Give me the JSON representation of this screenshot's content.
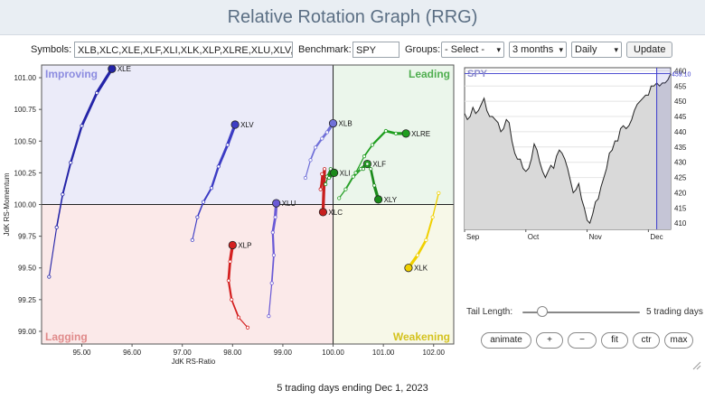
{
  "title": "Relative Rotation Graph (RRG)",
  "controls": {
    "symbols_label": "Symbols:",
    "symbols_value": "XLB,XLC,XLE,XLF,XLI,XLK,XLP,XLRE,XLU,XLV,XLY",
    "benchmark_label": "Benchmark:",
    "benchmark_value": "SPY",
    "groups_label": "Groups:",
    "groups_value": "- Select -",
    "period_value": "3 months",
    "frequency_value": "Daily",
    "update_label": "Update"
  },
  "rrg": {
    "quadrants": {
      "improving": "Improving",
      "leading": "Leading",
      "lagging": "Lagging",
      "weakening": "Weakening"
    },
    "colors": {
      "improving": "#ebebf9",
      "leading": "#ebf6eb",
      "lagging": "#fbe9e9",
      "weakening": "#f7f8e8",
      "improving_text": "#8c8ce0",
      "leading_text": "#4fae4f",
      "lagging_text": "#e08a8a",
      "weakening_text": "#d4c21e"
    },
    "x_axis_label": "JdK RS-Ratio",
    "y_axis_label": "JdK RS-Momentum",
    "x_ticks": [
      "95.00",
      "96.00",
      "97.00",
      "98.00",
      "99.00",
      "100.00",
      "101.00",
      "102.00"
    ],
    "y_ticks": [
      "101.00",
      "100.75",
      "100.50",
      "100.25",
      "100.00",
      "99.75",
      "99.50",
      "99.25",
      "99.00"
    ]
  },
  "chart_data": {
    "type": "scatter",
    "title": "",
    "xlabel": "JdK RS-Ratio",
    "ylabel": "JdK RS-Momentum",
    "xlim": [
      94.2,
      102.4
    ],
    "ylim": [
      98.9,
      101.1
    ],
    "series": [
      {
        "name": "XLE",
        "color": "#2424a8",
        "points": [
          [
            94.35,
            99.43
          ],
          [
            94.5,
            99.82
          ],
          [
            94.62,
            100.08
          ],
          [
            94.78,
            100.33
          ],
          [
            95.0,
            100.62
          ],
          [
            95.3,
            100.88
          ],
          [
            95.6,
            101.07
          ]
        ]
      },
      {
        "name": "XLV",
        "color": "#3c3cc4",
        "points": [
          [
            97.2,
            99.72
          ],
          [
            97.3,
            99.9
          ],
          [
            97.42,
            100.02
          ],
          [
            97.58,
            100.13
          ],
          [
            97.72,
            100.3
          ],
          [
            97.9,
            100.47
          ],
          [
            98.05,
            100.63
          ]
        ]
      },
      {
        "name": "XLB",
        "color": "#7070d8",
        "points": [
          [
            99.45,
            100.21
          ],
          [
            99.55,
            100.35
          ],
          [
            99.65,
            100.45
          ],
          [
            99.78,
            100.52
          ],
          [
            99.88,
            100.57
          ],
          [
            100.0,
            100.64
          ]
        ]
      },
      {
        "name": "XLU",
        "color": "#6a5ad6",
        "points": [
          [
            98.72,
            99.12
          ],
          [
            98.78,
            99.38
          ],
          [
            98.82,
            99.6
          ],
          [
            98.8,
            99.78
          ],
          [
            98.85,
            99.9
          ],
          [
            98.87,
            100.01
          ]
        ]
      },
      {
        "name": "XLP",
        "color": "#d42020",
        "points": [
          [
            98.3,
            99.03
          ],
          [
            98.12,
            99.11
          ],
          [
            97.98,
            99.25
          ],
          [
            97.92,
            99.4
          ],
          [
            97.95,
            99.55
          ],
          [
            98.0,
            99.68
          ]
        ]
      },
      {
        "name": "XLC",
        "color": "#c81e1e",
        "points": [
          [
            99.78,
            100.24
          ],
          [
            99.75,
            100.12
          ],
          [
            99.83,
            100.28
          ],
          [
            99.8,
            99.94
          ]
        ]
      },
      {
        "name": "XLI",
        "color": "#1a8a1a",
        "points": [
          [
            99.85,
            100.16
          ],
          [
            99.95,
            100.28
          ],
          [
            99.88,
            100.22
          ],
          [
            100.0,
            100.26
          ],
          [
            99.92,
            100.21
          ],
          [
            100.02,
            100.25
          ]
        ]
      },
      {
        "name": "XLF",
        "color": "#2aa02a",
        "points": [
          [
            100.12,
            100.05
          ],
          [
            100.25,
            100.12
          ],
          [
            100.4,
            100.22
          ],
          [
            100.55,
            100.28
          ],
          [
            100.68,
            100.32
          ]
        ]
      },
      {
        "name": "XLRE",
        "color": "#1e9e1e",
        "points": [
          [
            100.45,
            100.25
          ],
          [
            100.62,
            100.38
          ],
          [
            100.78,
            100.47
          ],
          [
            101.05,
            100.58
          ],
          [
            101.25,
            100.56
          ],
          [
            101.45,
            100.56
          ]
        ]
      },
      {
        "name": "XLY",
        "color": "#1a8a1a",
        "points": [
          [
            100.6,
            100.28
          ],
          [
            100.68,
            100.32
          ],
          [
            100.75,
            100.28
          ],
          [
            100.82,
            100.15
          ],
          [
            100.9,
            100.04
          ]
        ]
      },
      {
        "name": "XLK",
        "color": "#f0d000",
        "points": [
          [
            102.1,
            100.09
          ],
          [
            101.98,
            99.9
          ],
          [
            101.85,
            99.72
          ],
          [
            101.68,
            99.6
          ],
          [
            101.5,
            99.5
          ]
        ]
      }
    ]
  },
  "spy": {
    "label": "SPY",
    "last_value": "459.10",
    "y_ticks": [
      "460",
      "455",
      "450",
      "445",
      "440",
      "435",
      "430",
      "425",
      "420",
      "415",
      "410"
    ],
    "x_ticks": [
      "Sep",
      "Oct",
      "Nov",
      "Dec"
    ],
    "ylim": [
      408,
      461
    ],
    "prices": [
      446,
      444,
      445,
      448,
      446,
      447,
      449,
      451,
      447,
      445,
      445,
      444,
      443,
      440,
      441,
      444,
      443,
      437,
      433,
      431,
      431,
      428,
      427,
      428,
      431,
      436,
      434,
      430,
      427,
      425,
      427,
      429,
      428,
      432,
      434,
      433,
      431,
      428,
      424,
      420,
      421,
      423,
      418,
      415,
      411,
      410,
      413,
      417,
      418,
      422,
      425,
      428,
      433,
      434,
      437,
      437,
      441,
      442,
      441,
      442,
      444,
      447,
      449,
      450,
      451,
      452,
      452,
      455,
      455,
      456,
      455,
      456,
      456,
      457,
      459
    ]
  },
  "tail": {
    "label": "Tail Length:",
    "value_label": "5 trading days"
  },
  "buttons": {
    "animate": "animate",
    "plus": "+",
    "minus": "−",
    "fit": "fit",
    "ctr": "ctr",
    "max": "max"
  },
  "footer": "5 trading days ending Dec 1, 2023"
}
